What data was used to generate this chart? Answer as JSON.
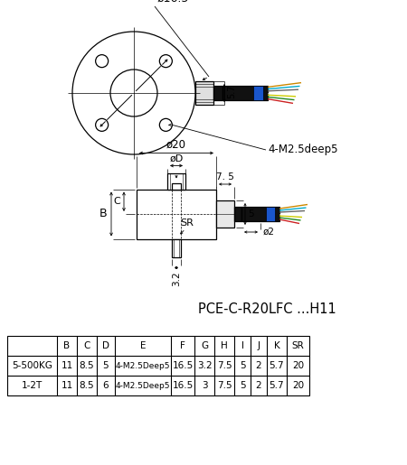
{
  "title": "PCE-C-R20LFC ...H11",
  "table_headers": [
    "",
    "B",
    "C",
    "D",
    "E",
    "F",
    "G",
    "H",
    "I",
    "J",
    "K",
    "SR"
  ],
  "table_rows": [
    [
      "5-500KG",
      "11",
      "8.5",
      "5",
      "4-M2.5Deep5",
      "16.5",
      "3.2",
      "7.5",
      "5",
      "2",
      "5.7",
      "20"
    ],
    [
      "1-2T",
      "11",
      "8.5",
      "6",
      "4-M2.5Deep5",
      "16.5",
      "3",
      "7.5",
      "5",
      "2",
      "5.7",
      "20"
    ]
  ],
  "bg_color": "#ffffff",
  "line_color": "#000000",
  "cable_blue": "#1a56cc",
  "wire_colors": [
    "#cc2222",
    "#228822",
    "#cccc00",
    "#ffffff",
    "#666666",
    "#00aacc",
    "#cc8800"
  ]
}
